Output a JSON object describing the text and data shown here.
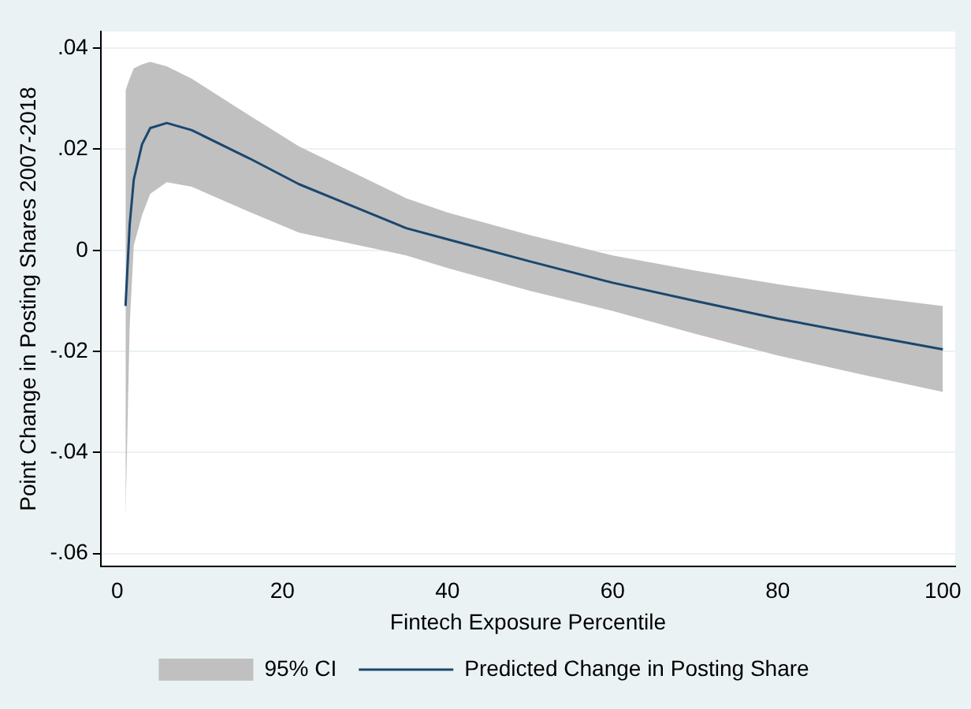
{
  "chart_data": {
    "type": "line",
    "xlabel": "Fintech Exposure Percentile",
    "ylabel": "Point Change in Posting Shares 2007-2018",
    "x": [
      1,
      1.5,
      2,
      3,
      4,
      6,
      9,
      16,
      22,
      35,
      40,
      50,
      60,
      70,
      80,
      90,
      100
    ],
    "series": [
      {
        "name": "95% CI",
        "type": "area",
        "color": "#c0c0c0",
        "values": [
          null,
          null,
          null,
          null,
          null,
          null,
          null,
          null,
          null,
          null,
          null,
          null,
          null,
          null,
          null,
          null,
          null
        ],
        "lower": [
          -0.053,
          -0.015,
          0.001,
          0.007,
          0.0112,
          0.0135,
          0.0126,
          0.0076,
          0.0035,
          -0.001,
          -0.0035,
          -0.008,
          -0.012,
          -0.0165,
          -0.0208,
          -0.0245,
          -0.028
        ],
        "upper": [
          0.0316,
          0.034,
          0.036,
          0.0368,
          0.0373,
          0.0364,
          0.034,
          0.0267,
          0.0206,
          0.0103,
          0.0075,
          0.003,
          -0.001,
          -0.004,
          -0.0067,
          -0.009,
          -0.011
        ]
      },
      {
        "name": "Predicted Change in Posting Share",
        "color": "#1a476f",
        "values": [
          -0.011,
          0.005,
          0.014,
          0.021,
          0.0242,
          0.0252,
          0.0238,
          0.0182,
          0.0131,
          0.0044,
          0.0022,
          -0.0022,
          -0.0064,
          -0.01,
          -0.0135,
          -0.0166,
          -0.0196
        ]
      }
    ],
    "xlim": [
      -2,
      101.5
    ],
    "xticks": [
      0,
      20,
      40,
      60,
      80,
      100
    ],
    "ylim": [
      -0.0625,
      0.0433
    ],
    "yticks": [
      {
        "value": -0.06,
        "label": "-.06"
      },
      {
        "value": -0.04,
        "label": "-.04"
      },
      {
        "value": -0.02,
        "label": "-.02"
      },
      0,
      {
        "value": 0.02,
        "label": ".02"
      },
      {
        "value": 0.04,
        "label": ".04"
      }
    ],
    "grid": "y",
    "legend": "bottom",
    "marker": "none",
    "line_style": "solid"
  }
}
